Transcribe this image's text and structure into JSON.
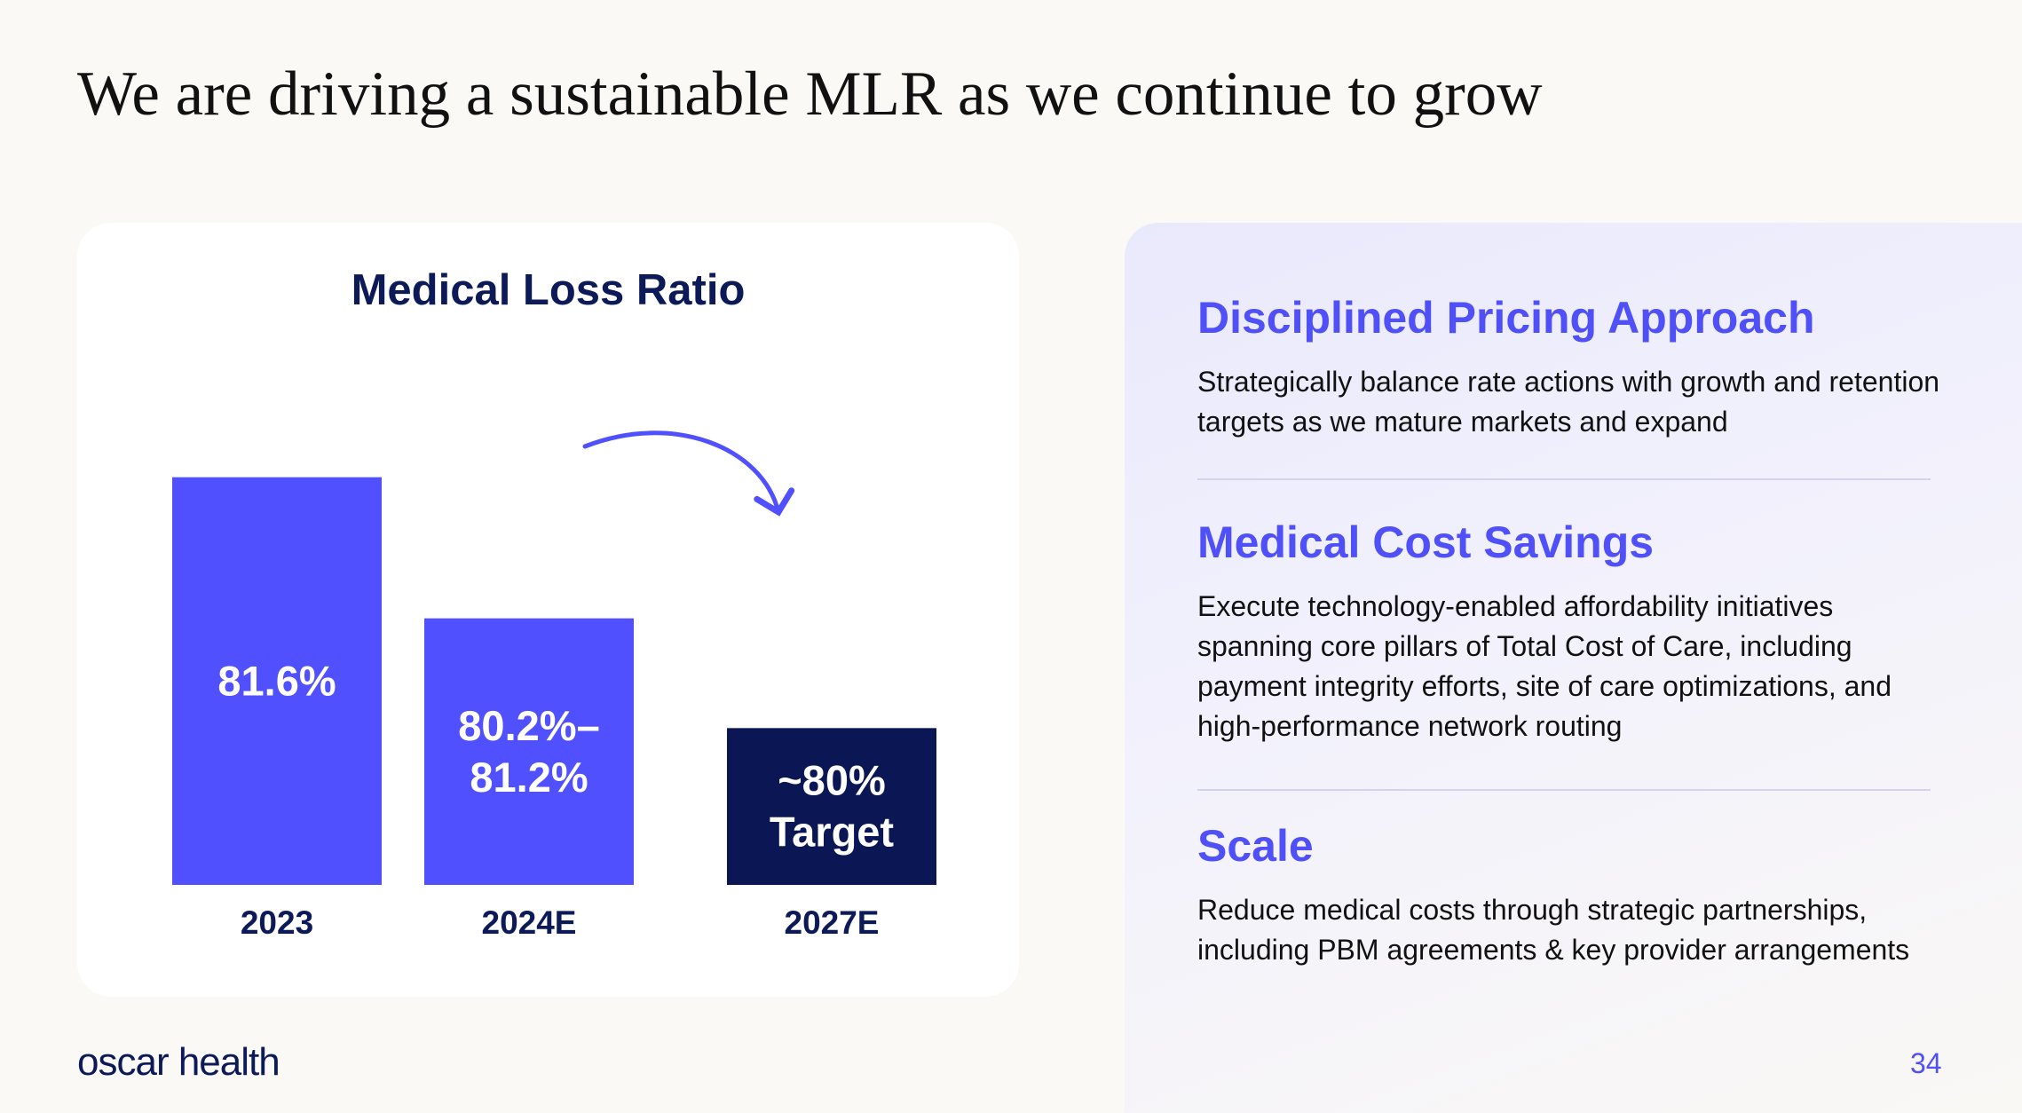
{
  "slide": {
    "title": "We are driving a sustainable MLR as we continue to grow",
    "page_number": "34",
    "logo_text": "oscar health"
  },
  "chart_data": {
    "type": "bar",
    "title": "Medical Loss Ratio",
    "categories": [
      "2023",
      "2024E",
      "2027E"
    ],
    "values": [
      81.6,
      80.7,
      80.0
    ],
    "value_labels": [
      [
        "81.6%"
      ],
      [
        "80.2%–",
        "81.2%"
      ],
      [
        "~80%",
        "Target"
      ]
    ],
    "ylim": [
      79.0,
      82.0
    ],
    "colors": [
      "#5050ff",
      "#5050ff",
      "#0b1654"
    ],
    "annotation": "arrow from 2024E to 2027E"
  },
  "sections": [
    {
      "heading": "Disciplined Pricing Approach",
      "body": "Strategically balance rate actions with growth and retention targets as we mature markets and expand"
    },
    {
      "heading": "Medical Cost Savings",
      "body": "Execute technology-enabled affordability initiatives spanning core pillars of Total Cost of Care, including payment integrity efforts, site of care optimizations, and high-performance network routing"
    },
    {
      "heading": "Scale",
      "body": "Reduce medical costs through strategic partnerships, including PBM agreements & key provider arrangements"
    }
  ],
  "colors": {
    "accent": "#5050f8",
    "navy": "#0c1a57",
    "background": "#faf9f6"
  }
}
